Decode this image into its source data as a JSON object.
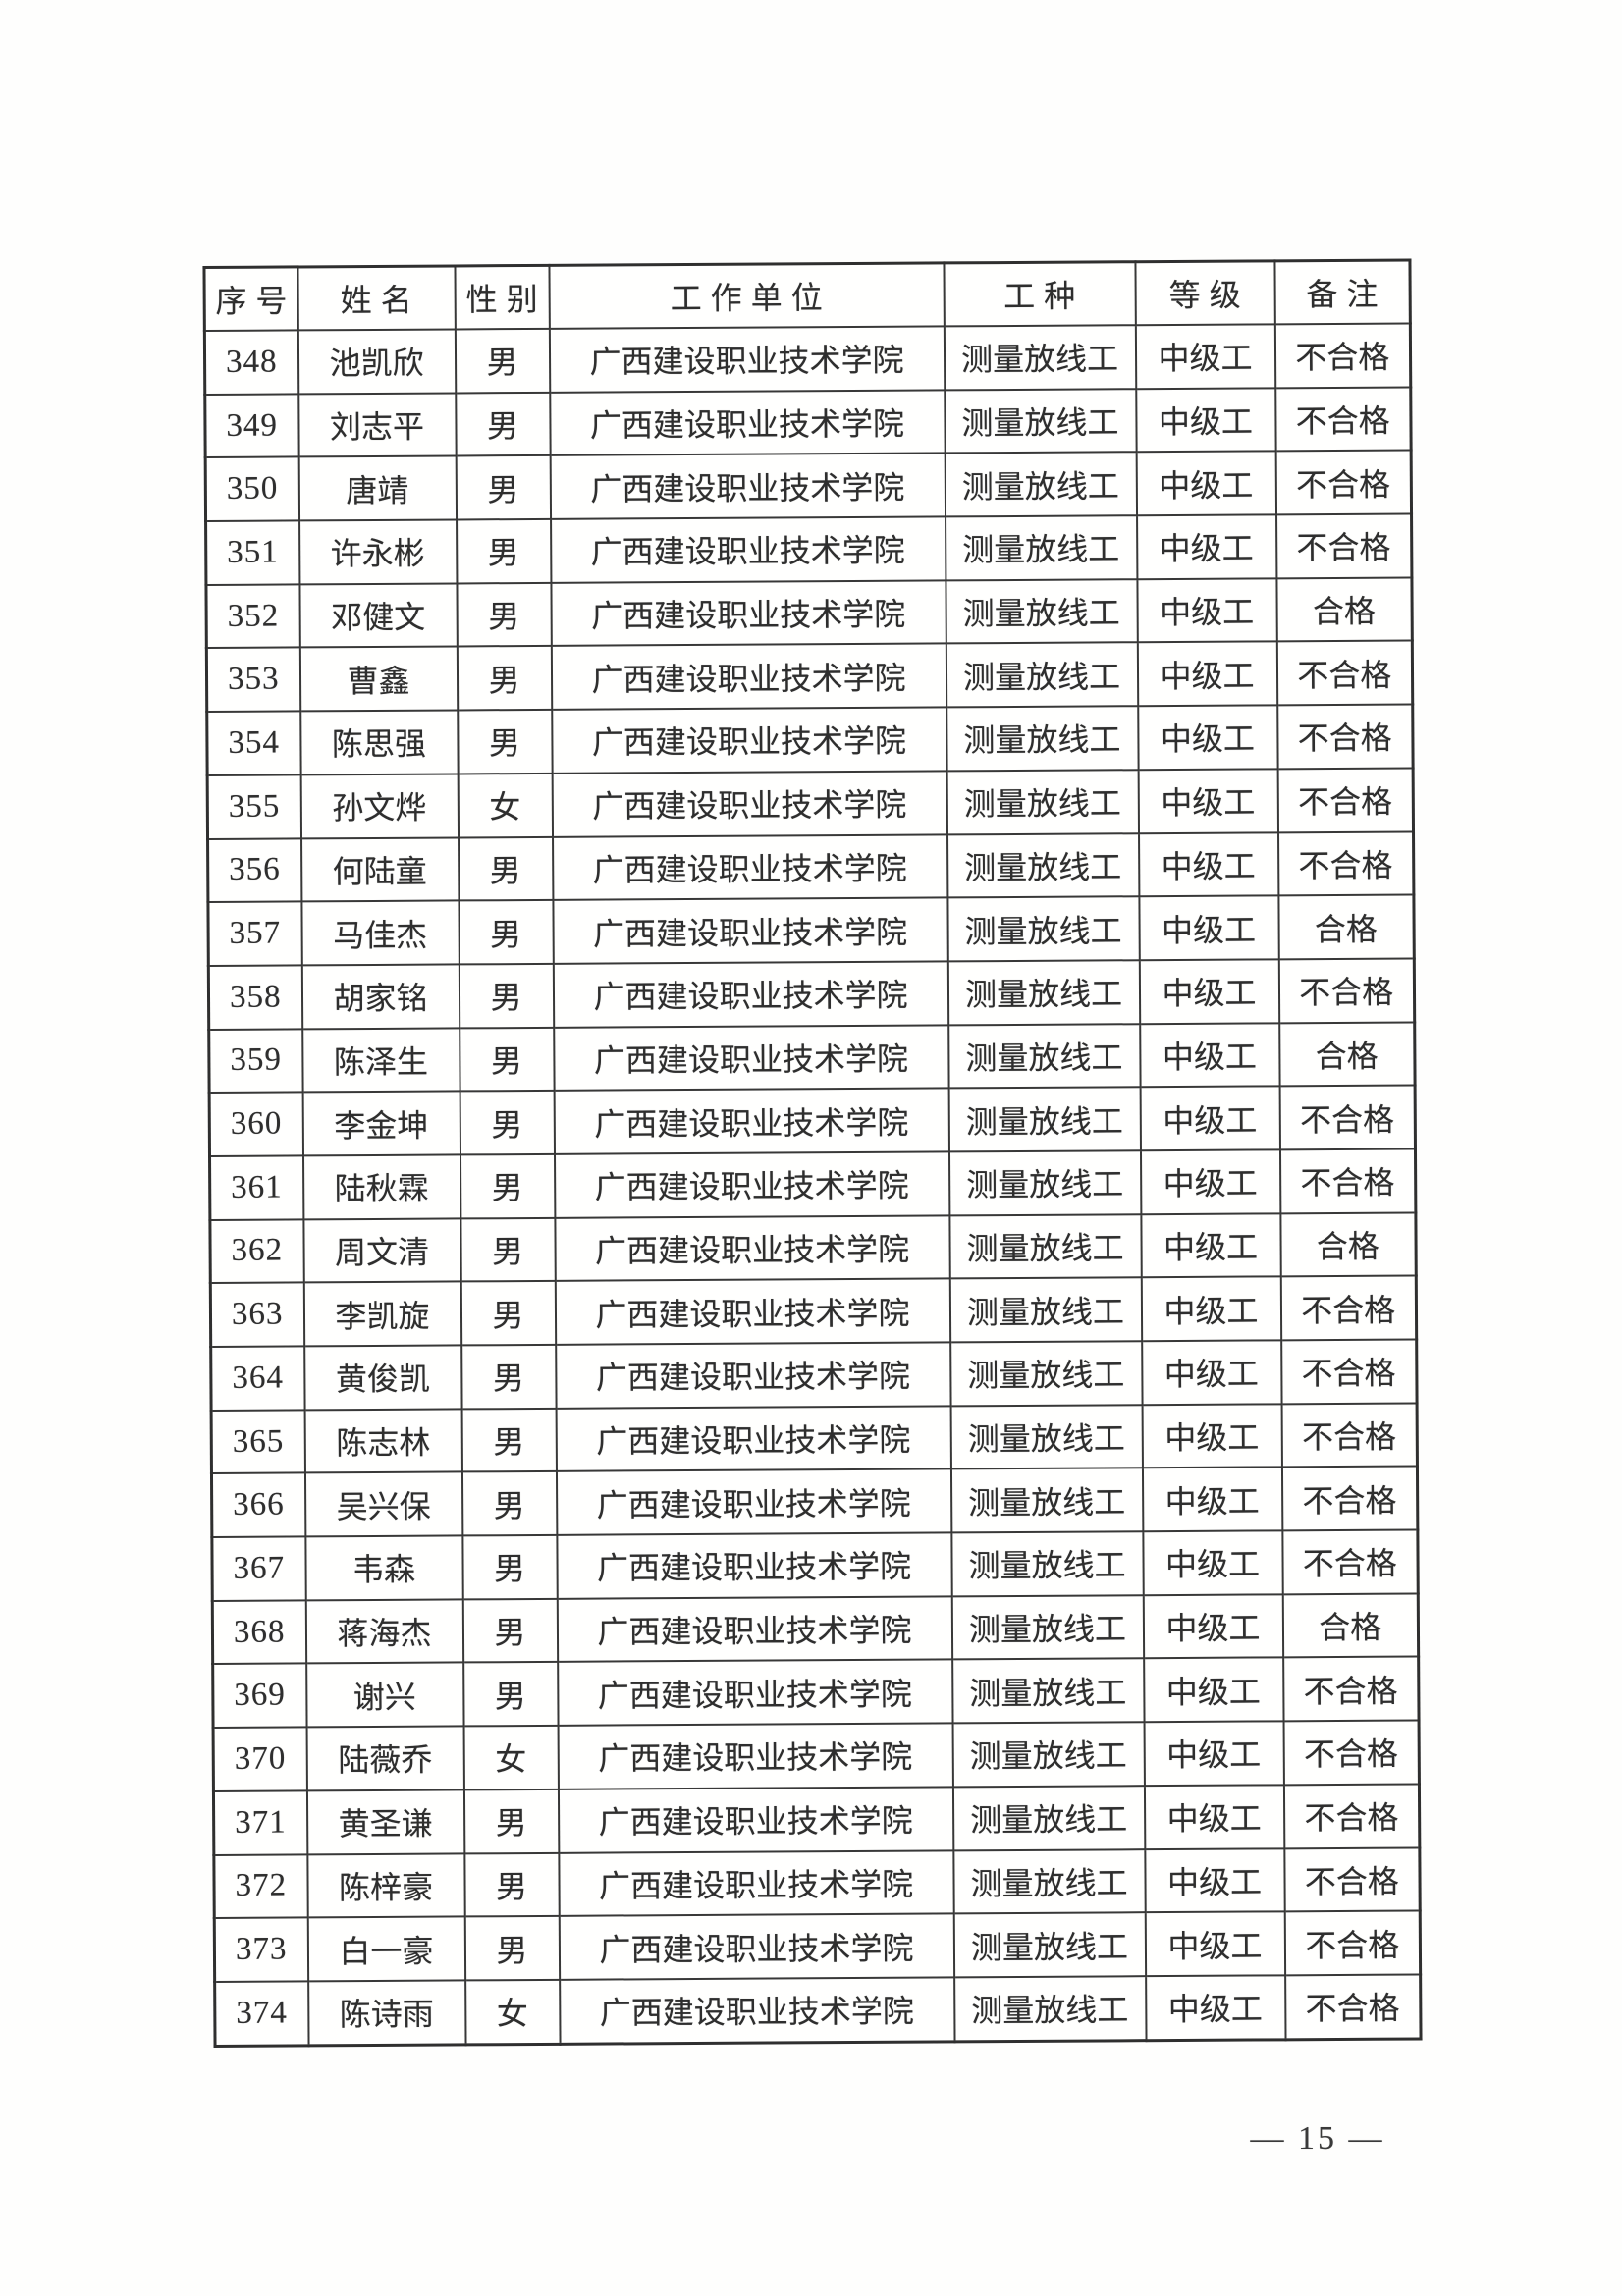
{
  "document": {
    "footer": {
      "page_label": "— 15 —"
    }
  },
  "colors": {
    "background": "#ffffff",
    "text": "#2e2e2e",
    "table_border": "#383838"
  },
  "table": {
    "columns": [
      "序号",
      "姓名",
      "性别",
      "工作单位",
      "工种",
      "等级",
      "备注"
    ],
    "rows": [
      {
        "no": "348",
        "name": "池凯欣",
        "gender": "男",
        "unit": "广西建设职业技术学院",
        "job": "测量放线工",
        "level": "中级工",
        "remark": "不合格"
      },
      {
        "no": "349",
        "name": "刘志平",
        "gender": "男",
        "unit": "广西建设职业技术学院",
        "job": "测量放线工",
        "level": "中级工",
        "remark": "不合格"
      },
      {
        "no": "350",
        "name": "唐靖",
        "gender": "男",
        "unit": "广西建设职业技术学院",
        "job": "测量放线工",
        "level": "中级工",
        "remark": "不合格"
      },
      {
        "no": "351",
        "name": "许永彬",
        "gender": "男",
        "unit": "广西建设职业技术学院",
        "job": "测量放线工",
        "level": "中级工",
        "remark": "不合格"
      },
      {
        "no": "352",
        "name": "邓健文",
        "gender": "男",
        "unit": "广西建设职业技术学院",
        "job": "测量放线工",
        "level": "中级工",
        "remark": "合格"
      },
      {
        "no": "353",
        "name": "曹鑫",
        "gender": "男",
        "unit": "广西建设职业技术学院",
        "job": "测量放线工",
        "level": "中级工",
        "remark": "不合格"
      },
      {
        "no": "354",
        "name": "陈思强",
        "gender": "男",
        "unit": "广西建设职业技术学院",
        "job": "测量放线工",
        "level": "中级工",
        "remark": "不合格"
      },
      {
        "no": "355",
        "name": "孙文烨",
        "gender": "女",
        "unit": "广西建设职业技术学院",
        "job": "测量放线工",
        "level": "中级工",
        "remark": "不合格"
      },
      {
        "no": "356",
        "name": "何陆童",
        "gender": "男",
        "unit": "广西建设职业技术学院",
        "job": "测量放线工",
        "level": "中级工",
        "remark": "不合格"
      },
      {
        "no": "357",
        "name": "马佳杰",
        "gender": "男",
        "unit": "广西建设职业技术学院",
        "job": "测量放线工",
        "level": "中级工",
        "remark": "合格"
      },
      {
        "no": "358",
        "name": "胡家铭",
        "gender": "男",
        "unit": "广西建设职业技术学院",
        "job": "测量放线工",
        "level": "中级工",
        "remark": "不合格"
      },
      {
        "no": "359",
        "name": "陈泽生",
        "gender": "男",
        "unit": "广西建设职业技术学院",
        "job": "测量放线工",
        "level": "中级工",
        "remark": "合格"
      },
      {
        "no": "360",
        "name": "李金坤",
        "gender": "男",
        "unit": "广西建设职业技术学院",
        "job": "测量放线工",
        "level": "中级工",
        "remark": "不合格"
      },
      {
        "no": "361",
        "name": "陆秋霖",
        "gender": "男",
        "unit": "广西建设职业技术学院",
        "job": "测量放线工",
        "level": "中级工",
        "remark": "不合格"
      },
      {
        "no": "362",
        "name": "周文清",
        "gender": "男",
        "unit": "广西建设职业技术学院",
        "job": "测量放线工",
        "level": "中级工",
        "remark": "合格"
      },
      {
        "no": "363",
        "name": "李凯旋",
        "gender": "男",
        "unit": "广西建设职业技术学院",
        "job": "测量放线工",
        "level": "中级工",
        "remark": "不合格"
      },
      {
        "no": "364",
        "name": "黄俊凯",
        "gender": "男",
        "unit": "广西建设职业技术学院",
        "job": "测量放线工",
        "level": "中级工",
        "remark": "不合格"
      },
      {
        "no": "365",
        "name": "陈志林",
        "gender": "男",
        "unit": "广西建设职业技术学院",
        "job": "测量放线工",
        "level": "中级工",
        "remark": "不合格"
      },
      {
        "no": "366",
        "name": "吴兴保",
        "gender": "男",
        "unit": "广西建设职业技术学院",
        "job": "测量放线工",
        "level": "中级工",
        "remark": "不合格"
      },
      {
        "no": "367",
        "name": "韦森",
        "gender": "男",
        "unit": "广西建设职业技术学院",
        "job": "测量放线工",
        "level": "中级工",
        "remark": "不合格"
      },
      {
        "no": "368",
        "name": "蒋海杰",
        "gender": "男",
        "unit": "广西建设职业技术学院",
        "job": "测量放线工",
        "level": "中级工",
        "remark": "合格"
      },
      {
        "no": "369",
        "name": "谢兴",
        "gender": "男",
        "unit": "广西建设职业技术学院",
        "job": "测量放线工",
        "level": "中级工",
        "remark": "不合格"
      },
      {
        "no": "370",
        "name": "陆薇乔",
        "gender": "女",
        "unit": "广西建设职业技术学院",
        "job": "测量放线工",
        "level": "中级工",
        "remark": "不合格"
      },
      {
        "no": "371",
        "name": "黄圣谦",
        "gender": "男",
        "unit": "广西建设职业技术学院",
        "job": "测量放线工",
        "level": "中级工",
        "remark": "不合格"
      },
      {
        "no": "372",
        "name": "陈梓豪",
        "gender": "男",
        "unit": "广西建设职业技术学院",
        "job": "测量放线工",
        "level": "中级工",
        "remark": "不合格"
      },
      {
        "no": "373",
        "name": "白一豪",
        "gender": "男",
        "unit": "广西建设职业技术学院",
        "job": "测量放线工",
        "level": "中级工",
        "remark": "不合格"
      },
      {
        "no": "374",
        "name": "陈诗雨",
        "gender": "女",
        "unit": "广西建设职业技术学院",
        "job": "测量放线工",
        "level": "中级工",
        "remark": "不合格"
      }
    ]
  }
}
